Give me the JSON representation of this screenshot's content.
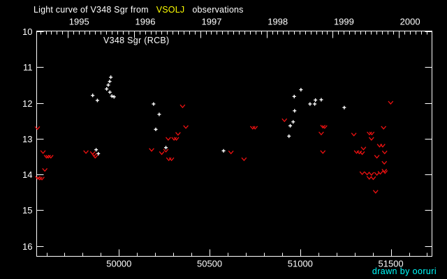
{
  "title": {
    "prefix": "Light curve of V348 Sgr from",
    "highlight": "VSOLJ",
    "suffix": "observations"
  },
  "object_label": "V348 Sgr (RCB)",
  "credit": "drawn by ooruri",
  "colors": {
    "background": "#000000",
    "axis": "#ffffff",
    "title_text": "#ffffff",
    "vsolj_highlight": "#ffff00",
    "credit_text": "#00ffff",
    "detection_marker": "#ffffff",
    "upper_limit_marker": "#ee1111"
  },
  "chart_data": {
    "type": "scatter",
    "title": "Light curve of V348 Sgr from VSOLJ observations",
    "xlabel": "",
    "ylabel": "",
    "x_axis": {
      "unit": "JD - 2400000",
      "xlim": [
        49546,
        51727
      ],
      "bottom_major_ticks": [
        50000,
        50500,
        51000,
        51500
      ],
      "bottom_tick_labels": [
        "50000",
        "50500",
        "51000",
        "51500"
      ],
      "bottom_minor_step": 100,
      "top_year_ticks": [
        1995,
        1996,
        1997,
        1998,
        1999,
        2000
      ],
      "top_year_labels": [
        "1995",
        "1996",
        "1997",
        "1998",
        "1999",
        "2000"
      ],
      "top_minor": "month-start ticks"
    },
    "y_axis": {
      "unit": "magnitude",
      "inverted": true,
      "ylim": [
        9.99,
        16.29
      ],
      "ticks": [
        10,
        11,
        12,
        13,
        14,
        15,
        16
      ],
      "tick_labels": [
        "10",
        "11",
        "12",
        "13",
        "14",
        "15",
        "16"
      ]
    },
    "legend": "none (white plus = detection, red v = fainter-than upper limit)",
    "series": [
      {
        "name": "detections",
        "marker": "plus",
        "color": "#ffffff",
        "points_jd_mag": [
          [
            49855,
            11.79
          ],
          [
            49881,
            11.93
          ],
          [
            49932,
            11.61
          ],
          [
            49941,
            11.5
          ],
          [
            49949,
            11.4
          ],
          [
            49950,
            11.7
          ],
          [
            49955,
            11.28
          ],
          [
            49961,
            11.81
          ],
          [
            49973,
            11.83
          ],
          [
            49874,
            13.31
          ],
          [
            49886,
            13.42
          ],
          [
            50191,
            12.03
          ],
          [
            50222,
            12.32
          ],
          [
            50203,
            12.74
          ],
          [
            50259,
            13.25
          ],
          [
            50577,
            13.34
          ],
          [
            50938,
            12.93
          ],
          [
            50945,
            12.64
          ],
          [
            50961,
            12.53
          ],
          [
            50967,
            11.82
          ],
          [
            50969,
            12.22
          ],
          [
            51004,
            11.63
          ],
          [
            51054,
            12.03
          ],
          [
            51080,
            12.03
          ],
          [
            51084,
            11.92
          ],
          [
            51116,
            11.91
          ],
          [
            51243,
            12.13
          ]
        ]
      },
      {
        "name": "upper_limits",
        "marker": "v",
        "color": "#ee1111",
        "points_jd_mag": [
          [
            49550,
            12.7
          ],
          [
            49581,
            13.37
          ],
          [
            49600,
            13.5
          ],
          [
            49610,
            13.5
          ],
          [
            49624,
            13.5
          ],
          [
            49591,
            13.87
          ],
          [
            49552,
            14.09
          ],
          [
            49563,
            14.11
          ],
          [
            49575,
            14.11
          ],
          [
            49818,
            13.37
          ],
          [
            49855,
            13.4
          ],
          [
            49863,
            13.45
          ],
          [
            49869,
            13.5
          ],
          [
            50180,
            13.31
          ],
          [
            50236,
            13.4
          ],
          [
            50259,
            13.33
          ],
          [
            50272,
            13.0
          ],
          [
            50304,
            13.0
          ],
          [
            50317,
            13.0
          ],
          [
            50326,
            12.86
          ],
          [
            50351,
            12.09
          ],
          [
            50369,
            12.67
          ],
          [
            50275,
            13.57
          ],
          [
            50290,
            13.57
          ],
          [
            50618,
            13.38
          ],
          [
            50690,
            13.57
          ],
          [
            50738,
            12.69
          ],
          [
            50751,
            12.69
          ],
          [
            50913,
            12.48
          ],
          [
            51116,
            12.85
          ],
          [
            51125,
            12.66
          ],
          [
            51135,
            12.67
          ],
          [
            51125,
            13.37
          ],
          [
            51296,
            12.88
          ],
          [
            51382,
            12.85
          ],
          [
            51395,
            12.85
          ],
          [
            51393,
            13.0
          ],
          [
            51438,
            13.19
          ],
          [
            51455,
            13.19
          ],
          [
            51349,
            13.27
          ],
          [
            51311,
            13.37
          ],
          [
            51326,
            13.38
          ],
          [
            51342,
            13.4
          ],
          [
            51466,
            13.38
          ],
          [
            51423,
            13.5
          ],
          [
            51464,
            13.67
          ],
          [
            51464,
            13.89
          ],
          [
            51342,
            13.96
          ],
          [
            51369,
            13.97
          ],
          [
            51393,
            13.98
          ],
          [
            51423,
            13.98
          ],
          [
            51442,
            13.95
          ],
          [
            51468,
            13.93
          ],
          [
            51381,
            14.09
          ],
          [
            51403,
            14.1
          ],
          [
            51416,
            14.48
          ],
          [
            51499,
            11.99
          ],
          [
            51460,
            12.69
          ]
        ]
      }
    ]
  }
}
